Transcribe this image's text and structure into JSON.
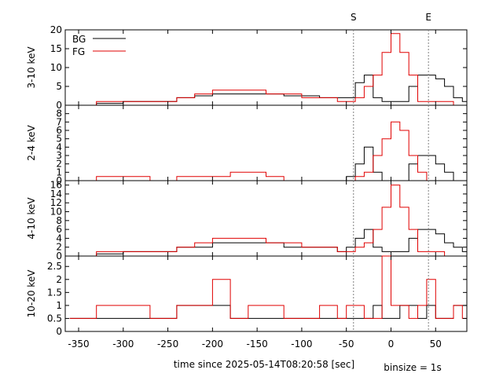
{
  "figure": {
    "xlabel": "time since 2025-05-14T08:20:58 [sec]",
    "binsize_label": "binsize = 1s",
    "marker_start_label": "S",
    "marker_end_label": "E",
    "legend": {
      "bg": "BG",
      "fg": "FG"
    },
    "colors": {
      "bg": "#000000",
      "fg": "#e00000",
      "marker": "#808080"
    }
  },
  "chart_data": {
    "type": "line",
    "xlim": [
      -365,
      85
    ],
    "xticks": [
      -350,
      -300,
      -250,
      -200,
      -150,
      -100,
      -50,
      0,
      50
    ],
    "xtick_labels": [
      "-350",
      "-300",
      "-250",
      "-200",
      "-150",
      "-100",
      "-50",
      "0",
      "50"
    ],
    "markers": [
      {
        "label": "S",
        "x": -42
      },
      {
        "label": "E",
        "x": 42
      }
    ],
    "legend_placement": "top-left",
    "panels": [
      {
        "ylabel": "3-10 keV",
        "ylim": [
          0,
          20
        ],
        "yticks": [
          0,
          5,
          10,
          15,
          20
        ],
        "ytick_labels": [
          "0",
          "5",
          "10",
          "15",
          "20"
        ],
        "series": [
          {
            "name": "BG",
            "x": [
              -360,
              -330,
              -300,
              -270,
              -240,
              -220,
              -200,
              -180,
              -160,
              -140,
              -120,
              -100,
              -80,
              -60,
              -50,
              -40,
              -30,
              -20,
              -10,
              0,
              10,
              20,
              30,
              40,
              50,
              60,
              70,
              80
            ],
            "values": [
              0,
              0.5,
              1,
              1,
              2,
              2.5,
              3,
              3,
              3,
              3,
              2.5,
              2.5,
              2,
              2,
              2,
              6,
              8,
              2,
              1,
              1,
              1,
              5,
              8,
              8,
              7,
              5,
              2,
              1
            ]
          },
          {
            "name": "FG",
            "x": [
              -360,
              -330,
              -300,
              -270,
              -240,
              -220,
              -200,
              -180,
              -160,
              -140,
              -120,
              -100,
              -80,
              -60,
              -50,
              -40,
              -30,
              -20,
              -10,
              0,
              10,
              20,
              30,
              40,
              50,
              60,
              70,
              80
            ],
            "values": [
              0,
              1,
              1,
              1,
              2,
              3,
              4,
              4,
              4,
              3,
              3,
              2,
              2,
              1,
              1,
              2,
              5,
              8,
              14,
              19,
              14,
              8,
              1,
              1,
              1,
              1,
              0,
              0
            ]
          }
        ]
      },
      {
        "ylabel": "2-4 keV",
        "ylim": [
          0,
          9
        ],
        "yticks": [
          0,
          1,
          2,
          3,
          4,
          5,
          6,
          7,
          8
        ],
        "ytick_labels": [
          "0",
          "1",
          "2",
          "3",
          "4",
          "5",
          "6",
          "7",
          "8"
        ],
        "series": [
          {
            "name": "BG",
            "x": [
              -360,
              -330,
              -300,
              -270,
              -240,
              -220,
              -200,
              -180,
              -160,
              -140,
              -120,
              -100,
              -80,
              -60,
              -50,
              -40,
              -30,
              -20,
              -10,
              0,
              10,
              20,
              30,
              40,
              50,
              60,
              70,
              80
            ],
            "values": [
              0,
              0,
              0,
              0,
              0,
              0,
              0,
              0,
              0,
              0,
              0,
              0,
              0,
              0,
              0.5,
              2,
              4,
              1,
              0,
              0,
              0,
              2,
              3,
              3,
              2,
              1,
              0,
              0
            ]
          },
          {
            "name": "FG",
            "x": [
              -360,
              -330,
              -300,
              -270,
              -240,
              -220,
              -200,
              -180,
              -160,
              -140,
              -120,
              -100,
              -80,
              -60,
              -50,
              -40,
              -30,
              -20,
              -10,
              0,
              10,
              20,
              30,
              40,
              50,
              60,
              70,
              80
            ],
            "values": [
              0,
              0.5,
              0.5,
              0,
              0.5,
              0.5,
              0.5,
              1,
              1,
              0.5,
              0,
              0,
              0,
              0,
              0,
              0.5,
              1,
              3,
              5,
              7,
              6,
              3,
              1,
              0,
              0,
              0,
              0,
              0
            ]
          }
        ]
      },
      {
        "ylabel": "4-10 keV",
        "ylim": [
          0,
          17
        ],
        "yticks": [
          0,
          2,
          4,
          6,
          8,
          10,
          12,
          14,
          16
        ],
        "ytick_labels": [
          "0",
          "2",
          "4",
          "6",
          "8",
          "10",
          "12",
          "14",
          "16"
        ],
        "series": [
          {
            "name": "BG",
            "x": [
              -360,
              -330,
              -300,
              -270,
              -240,
              -220,
              -200,
              -180,
              -160,
              -140,
              -120,
              -100,
              -80,
              -60,
              -50,
              -40,
              -30,
              -20,
              -10,
              0,
              10,
              20,
              30,
              40,
              50,
              60,
              70,
              80
            ],
            "values": [
              0,
              0.5,
              1,
              1,
              2,
              2,
              3,
              3,
              3,
              3,
              2,
              2,
              2,
              1,
              2,
              4,
              6,
              2,
              1,
              1,
              1,
              4,
              6,
              6,
              5,
              3,
              2,
              1
            ]
          },
          {
            "name": "FG",
            "x": [
              -360,
              -330,
              -300,
              -270,
              -240,
              -220,
              -200,
              -180,
              -160,
              -140,
              -120,
              -100,
              -80,
              -60,
              -50,
              -40,
              -30,
              -20,
              -10,
              0,
              10,
              20,
              30,
              40,
              50,
              60,
              70,
              80
            ],
            "values": [
              0,
              1,
              1,
              1,
              2,
              3,
              4,
              4,
              4,
              3,
              3,
              2,
              2,
              1,
              1,
              2,
              3,
              6,
              11,
              16,
              11,
              6,
              1,
              1,
              1,
              0,
              0,
              0
            ]
          }
        ]
      },
      {
        "ylabel": "10-20 keV",
        "ylim": [
          0,
          2.9
        ],
        "yticks": [
          0,
          0.5,
          1,
          1.5,
          2,
          2.5
        ],
        "ytick_labels": [
          "0",
          "0.5",
          "1",
          "1.5",
          "2",
          "2.5"
        ],
        "series": [
          {
            "name": "BG",
            "x": [
              -360,
              -330,
              -300,
              -270,
              -240,
              -220,
              -200,
              -180,
              -160,
              -140,
              -120,
              -100,
              -80,
              -60,
              -50,
              -40,
              -30,
              -20,
              -10,
              0,
              10,
              20,
              30,
              40,
              50,
              60,
              70,
              80
            ],
            "values": [
              0.5,
              0.5,
              0.5,
              0.5,
              1,
              1,
              1,
              0.5,
              0.5,
              0.5,
              0.5,
              0.5,
              0.5,
              0.5,
              0.5,
              0.5,
              0.5,
              1,
              0.5,
              0.5,
              1,
              1,
              0.5,
              1,
              0.5,
              0.5,
              1,
              1
            ]
          },
          {
            "name": "FG",
            "x": [
              -360,
              -330,
              -300,
              -270,
              -240,
              -220,
              -200,
              -180,
              -160,
              -140,
              -120,
              -100,
              -80,
              -60,
              -50,
              -40,
              -30,
              -20,
              -10,
              0,
              10,
              20,
              30,
              40,
              50,
              60,
              70,
              80
            ],
            "values": [
              0.5,
              1,
              1,
              0.5,
              1,
              1,
              2,
              0.5,
              1,
              1,
              0.5,
              0.5,
              1,
              0.5,
              1,
              1,
              0.5,
              0.5,
              2.9,
              1,
              1,
              0.5,
              1,
              2,
              0.5,
              0.5,
              1,
              0.5
            ]
          }
        ]
      }
    ]
  }
}
